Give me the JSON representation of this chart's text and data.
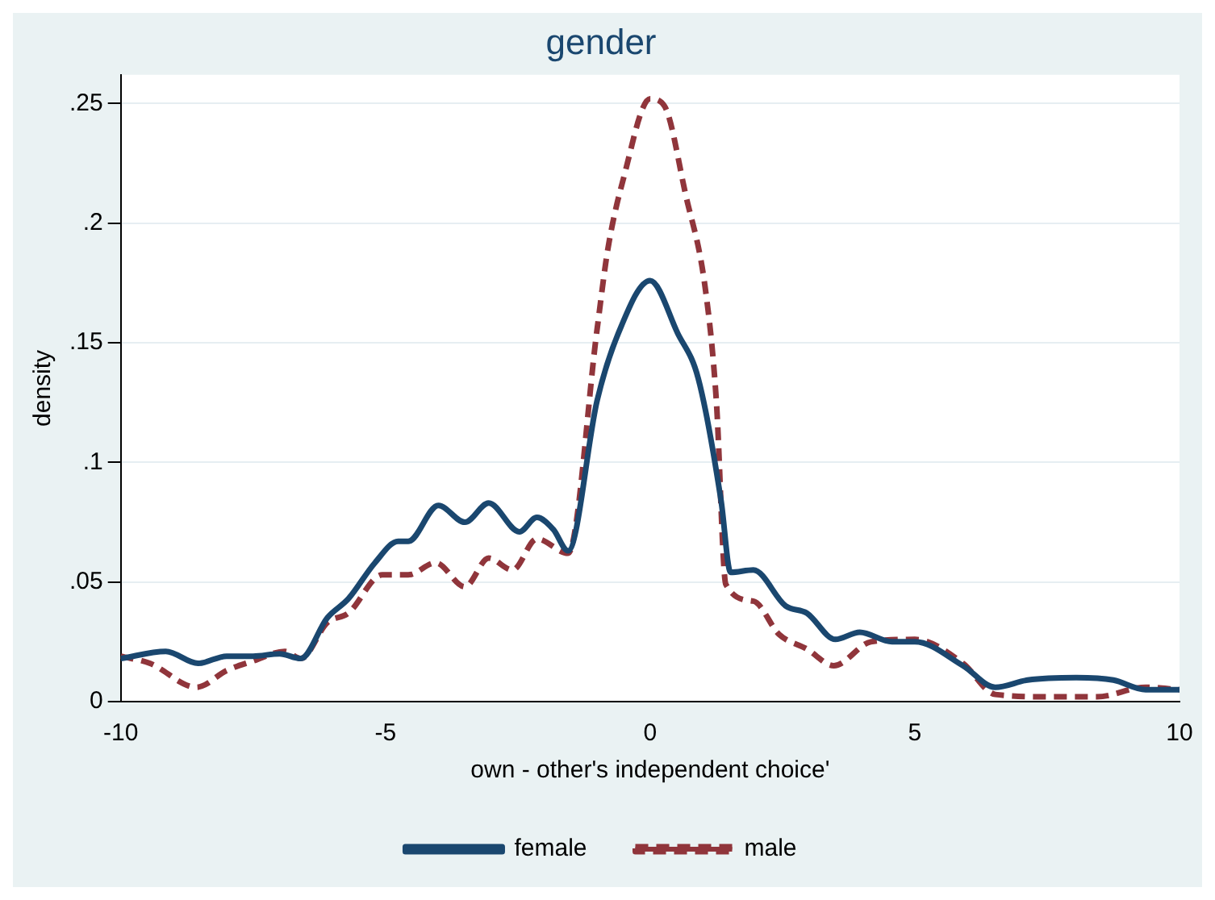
{
  "chart_data": {
    "type": "line",
    "title": "gender",
    "xlabel": "own - other's independent choice'",
    "ylabel": "density",
    "xlim": [
      -10,
      10
    ],
    "xticks": [
      -10,
      -5,
      0,
      5,
      10
    ],
    "ylim": [
      0,
      0.262
    ],
    "yticks": [
      0,
      {
        "value": 0.05,
        "label": ".05"
      },
      {
        "value": 0.1,
        "label": ".1"
      },
      {
        "value": 0.15,
        "label": ".15"
      },
      {
        "value": 0.2,
        "label": ".2"
      },
      {
        "value": 0.25,
        "label": ".25"
      }
    ],
    "grid": "y",
    "legend": "bottom",
    "marker": "none",
    "series": [
      {
        "name": "female",
        "color": "#1a476f",
        "line_style": "solid",
        "x": [
          -10,
          -9.15,
          -8.54,
          -8,
          -7.5,
          -7,
          -6.6,
          -6.1,
          -5.7,
          -5.2,
          -4.76,
          -4.57,
          -4,
          -3.5,
          -3.05,
          -2.47,
          -2.14,
          -1.83,
          -1.55,
          -1,
          -0.6,
          0,
          0.52,
          0.91,
          1.34,
          1.52,
          1.95,
          2.56,
          2.96,
          3.5,
          3.96,
          4.57,
          5,
          5.91,
          6.52,
          7.13,
          8.05,
          8.75,
          9.36,
          10
        ],
        "values": [
          0.018,
          0.021,
          0.016,
          0.019,
          0.019,
          0.02,
          0.018,
          0.035,
          0.043,
          0.058,
          0.067,
          0.067,
          0.082,
          0.075,
          0.083,
          0.071,
          0.077,
          0.072,
          0.063,
          0.126,
          0.154,
          0.176,
          0.154,
          0.135,
          0.084,
          0.054,
          0.055,
          0.04,
          0.037,
          0.026,
          0.029,
          0.025,
          0.025,
          0.015,
          0.006,
          0.009,
          0.01,
          0.009,
          0.005,
          0.005
        ]
      },
      {
        "name": "male",
        "color": "#90353b",
        "line_style": "dashed",
        "x": [
          -10,
          -9.45,
          -8.57,
          -8,
          -7.5,
          -6.9,
          -6.6,
          -6.1,
          -5.7,
          -5.06,
          -4.57,
          -4.05,
          -3.5,
          -3.05,
          -2.6,
          -2.14,
          -1.55,
          -1,
          -0.8,
          -0.5,
          0,
          0.27,
          0.67,
          1.04,
          1.25,
          1.43,
          1.95,
          2.44,
          2.96,
          3.47,
          4.17,
          5,
          5.91,
          6.52,
          7.62,
          8.44,
          9.36,
          10
        ],
        "values": [
          0.019,
          0.016,
          0.006,
          0.013,
          0.017,
          0.021,
          0.018,
          0.033,
          0.037,
          0.053,
          0.053,
          0.058,
          0.048,
          0.06,
          0.055,
          0.068,
          0.062,
          0.156,
          0.189,
          0.219,
          0.252,
          0.249,
          0.212,
          0.173,
          0.126,
          0.049,
          0.042,
          0.028,
          0.022,
          0.015,
          0.025,
          0.026,
          0.016,
          0.003,
          0.002,
          0.002,
          0.006,
          0.005
        ]
      }
    ]
  }
}
